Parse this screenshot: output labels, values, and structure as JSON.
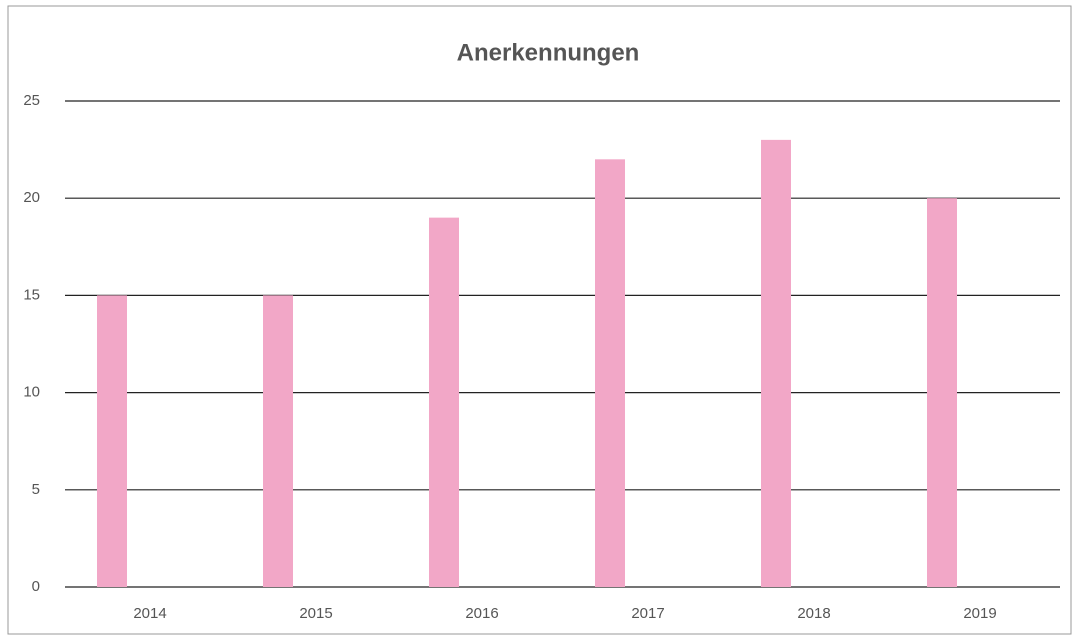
{
  "chart_data": {
    "type": "bar",
    "title": "Anerkennungen",
    "categories": [
      "2014",
      "2015",
      "2016",
      "2017",
      "2018",
      "2019"
    ],
    "values": [
      15,
      15,
      19,
      22,
      23,
      20
    ],
    "color": "#f2a7c7",
    "ylim": [
      0,
      25
    ],
    "yticks": [
      0,
      5,
      10,
      15,
      20,
      25
    ],
    "grid": true
  }
}
